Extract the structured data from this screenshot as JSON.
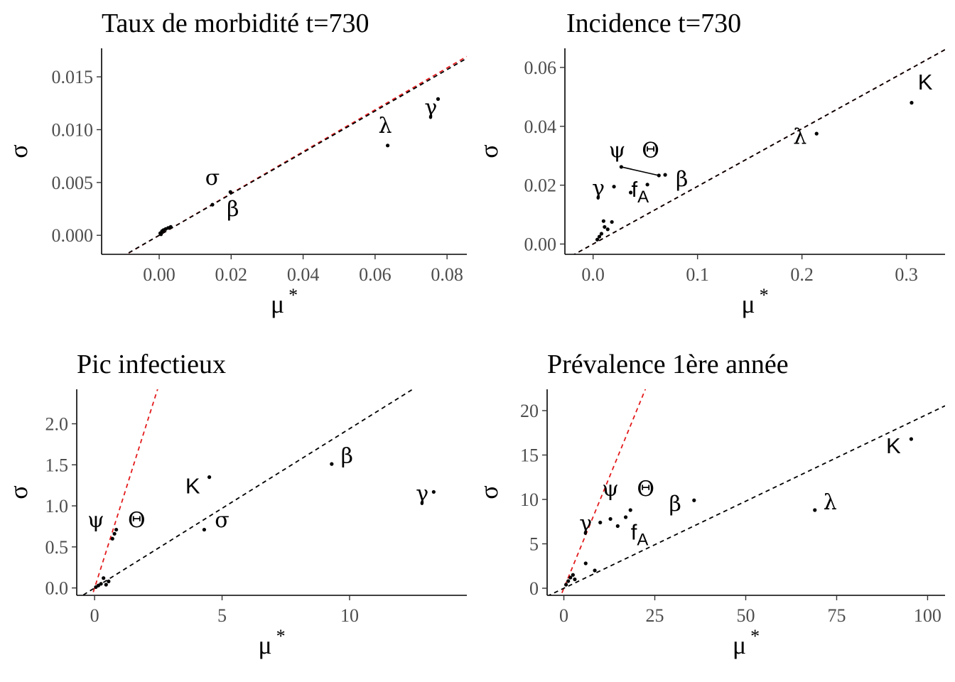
{
  "chart_data": [
    {
      "type": "scatter",
      "title": "Taux de morbidité t=730",
      "xlabel": "μ*",
      "ylabel": "σ",
      "xlim": [
        -0.016,
        0.0855
      ],
      "ylim": [
        -0.0018,
        0.0177
      ],
      "xticks": [
        0.0,
        0.02,
        0.04,
        0.06,
        0.08
      ],
      "xtick_labels": [
        "0.00",
        "0.02",
        "0.04",
        "0.06",
        "0.08"
      ],
      "yticks": [
        0.0,
        0.005,
        0.01,
        0.015
      ],
      "ytick_labels": [
        "0.000",
        "0.005",
        "0.010",
        "0.015"
      ],
      "ref_lines": [
        {
          "slope": 0.198,
          "color": "#e31a1c",
          "style": "dashed"
        },
        {
          "slope": 0.196,
          "color": "#000000",
          "style": "dashed",
          "note": "black"
        }
      ],
      "points": [
        {
          "x": 0.0635,
          "y": 0.0085,
          "label": "λ",
          "lx": 0.0628,
          "ly": 0.0097
        },
        {
          "x": 0.0775,
          "y": 0.0129,
          "label": "γ",
          "lx": 0.0755,
          "ly": 0.0114
        },
        {
          "x": 0.0148,
          "y": 0.0029,
          "label": "σ",
          "lx": 0.0148,
          "ly": 0.0048
        },
        {
          "x": 0.0198,
          "y": 0.0041,
          "label": "β",
          "lx": 0.0205,
          "ly": 0.0018
        },
        {
          "x": 0.0003,
          "y": 0.0002
        },
        {
          "x": 0.0008,
          "y": 0.0004
        },
        {
          "x": 0.0012,
          "y": 0.0005
        },
        {
          "x": 0.0018,
          "y": 0.0006
        },
        {
          "x": 0.0025,
          "y": 0.0007
        },
        {
          "x": 0.0032,
          "y": 0.0008
        },
        {
          "x": 0.0005,
          "y": 0.0001
        }
      ],
      "segments": []
    },
    {
      "type": "scatter",
      "title": "Incidence t=730",
      "xlabel": "μ*",
      "ylabel": "σ",
      "xlim": [
        -0.027,
        0.337
      ],
      "ylim": [
        -0.0035,
        0.0665
      ],
      "xticks": [
        0.0,
        0.1,
        0.2,
        0.3
      ],
      "xtick_labels": [
        "0.0",
        "0.1",
        "0.2",
        "0.3"
      ],
      "yticks": [
        0.0,
        0.02,
        0.04,
        0.06
      ],
      "ytick_labels": [
        "0.00",
        "0.02",
        "0.04",
        "0.06"
      ],
      "ref_lines": [
        {
          "slope": 0.196,
          "color": "#e31a1c",
          "style": "dashed"
        },
        {
          "slope": 0.196,
          "color": "#000000",
          "style": "dashed",
          "note": "black"
        }
      ],
      "points": [
        {
          "x": 0.305,
          "y": 0.048,
          "label": "K",
          "lx": 0.318,
          "ly": 0.0525
        },
        {
          "x": 0.214,
          "y": 0.0375,
          "label": "λ",
          "lx": 0.198,
          "ly": 0.034
        },
        {
          "x": 0.069,
          "y": 0.0235,
          "label": "β",
          "lx": 0.085,
          "ly": 0.0195
        },
        {
          "x": 0.063,
          "y": 0.0233,
          "label": "Θ",
          "lx": 0.055,
          "ly": 0.0295
        },
        {
          "x": 0.027,
          "y": 0.0262,
          "label": "ψ",
          "lx": 0.023,
          "ly": 0.0295
        },
        {
          "x": 0.036,
          "y": 0.0175,
          "label": "fA",
          "lx": 0.045,
          "ly": 0.016
        },
        {
          "x": 0.02,
          "y": 0.0195,
          "label": "γ",
          "lx": 0.005,
          "ly": 0.0165
        },
        {
          "x": 0.052,
          "y": 0.0202
        },
        {
          "x": 0.018,
          "y": 0.0075
        },
        {
          "x": 0.01,
          "y": 0.0078
        },
        {
          "x": 0.014,
          "y": 0.005
        },
        {
          "x": 0.008,
          "y": 0.0035
        },
        {
          "x": 0.006,
          "y": 0.0025
        },
        {
          "x": 0.004,
          "y": 0.0015
        },
        {
          "x": 0.011,
          "y": 0.0058
        }
      ],
      "segments": [
        {
          "x1": 0.027,
          "y1": 0.0262,
          "x2": 0.063,
          "y2": 0.0233
        }
      ]
    },
    {
      "type": "scatter",
      "title": "Pic infectieux",
      "xlabel": "μ*",
      "ylabel": "σ",
      "xlim": [
        -0.7,
        14.6
      ],
      "ylim": [
        -0.09,
        2.42
      ],
      "xticks": [
        0,
        5,
        10
      ],
      "xtick_labels": [
        "0",
        "5",
        "10"
      ],
      "yticks": [
        0.0,
        0.5,
        1.0,
        1.5,
        2.0
      ],
      "ytick_labels": [
        "0.0",
        "0.5",
        "1.0",
        "1.5",
        "2.0"
      ],
      "ref_lines": [
        {
          "slope": 0.98,
          "color": "#e31a1c",
          "style": "dashed"
        },
        {
          "slope": 0.194,
          "color": "#000000",
          "style": "dashed",
          "note": "black"
        }
      ],
      "points": [
        {
          "x": 13.3,
          "y": 1.17,
          "label": "γ",
          "lx": 12.85,
          "ly": 1.06
        },
        {
          "x": 9.3,
          "y": 1.51,
          "label": "β",
          "lx": 9.9,
          "ly": 1.52
        },
        {
          "x": 4.5,
          "y": 1.35,
          "label": "K",
          "lx": 3.85,
          "ly": 1.15
        },
        {
          "x": 4.3,
          "y": 0.71,
          "label": "σ",
          "lx": 5.0,
          "ly": 0.74
        },
        {
          "x": 0.85,
          "y": 0.71,
          "label": "Θ",
          "lx": 1.65,
          "ly": 0.74
        },
        {
          "x": 0.7,
          "y": 0.6,
          "label": "ψ",
          "lx": 0.05,
          "ly": 0.74
        },
        {
          "x": 0.78,
          "y": 0.66
        },
        {
          "x": 0.35,
          "y": 0.12
        },
        {
          "x": 0.55,
          "y": 0.08
        },
        {
          "x": 0.25,
          "y": 0.05
        },
        {
          "x": 0.15,
          "y": 0.03
        },
        {
          "x": 0.05,
          "y": 0.01
        },
        {
          "x": 0.45,
          "y": 0.04
        }
      ],
      "segments": []
    },
    {
      "type": "scatter",
      "title": "Prévalence 1ère année",
      "xlabel": "μ*",
      "ylabel": "σ",
      "xlim": [
        -4.6,
        104.8
      ],
      "ylim": [
        -0.8,
        22.4
      ],
      "xticks": [
        0,
        25,
        50,
        75,
        100
      ],
      "xtick_labels": [
        "0",
        "25",
        "50",
        "75",
        "100"
      ],
      "yticks": [
        0,
        5,
        10,
        15,
        20
      ],
      "ytick_labels": [
        "0",
        "5",
        "10",
        "15",
        "20"
      ],
      "ref_lines": [
        {
          "slope": 1.0,
          "color": "#e31a1c",
          "style": "dashed"
        },
        {
          "slope": 0.196,
          "color": "#000000",
          "style": "dashed",
          "note": "black"
        }
      ],
      "points": [
        {
          "x": 95.5,
          "y": 16.8,
          "label": "K",
          "lx": 90.6,
          "ly": 15.2
        },
        {
          "x": 69.0,
          "y": 8.8,
          "label": "λ",
          "lx": 73.2,
          "ly": 8.9
        },
        {
          "x": 35.8,
          "y": 9.9,
          "label": "β",
          "lx": 30.6,
          "ly": 8.7
        },
        {
          "x": 18.3,
          "y": 8.8,
          "label": "Θ",
          "lx": 22.5,
          "ly": 10.4
        },
        {
          "x": 12.8,
          "y": 7.8,
          "label": "ψ",
          "lx": 12.8,
          "ly": 10.4
        },
        {
          "x": 14.8,
          "y": 7.0,
          "label": "fA",
          "lx": 20.8,
          "ly": 5.5
        },
        {
          "x": 10.0,
          "y": 7.4,
          "label": "γ",
          "lx": 6.0,
          "ly": 6.5
        },
        {
          "x": 17.0,
          "y": 8.0
        },
        {
          "x": 6.0,
          "y": 2.8
        },
        {
          "x": 8.5,
          "y": 2.0
        },
        {
          "x": 2.5,
          "y": 1.5
        },
        {
          "x": 1.8,
          "y": 1.2
        },
        {
          "x": 1.2,
          "y": 0.8
        },
        {
          "x": 0.6,
          "y": 0.4
        },
        {
          "x": 3.0,
          "y": 1.0
        }
      ],
      "segments": []
    }
  ]
}
